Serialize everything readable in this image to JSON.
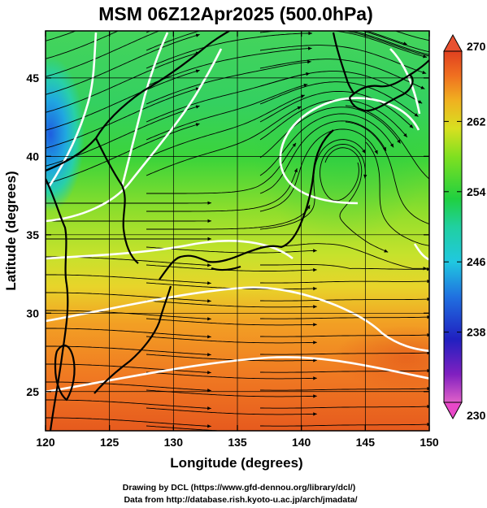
{
  "chart_data": {
    "type": "heatmap",
    "title": "MSM 06Z12Apr2025 (500.0hPa)",
    "xlabel": "Longitude (degrees)",
    "ylabel": "Latitude  (degrees)",
    "xlim": [
      120,
      150
    ],
    "ylim": [
      22.5,
      48
    ],
    "xticks": [
      "120",
      "125",
      "130",
      "135",
      "140",
      "145",
      "150"
    ],
    "yticks": [
      "25",
      "30",
      "35",
      "40",
      "45"
    ],
    "colorbar": {
      "range": [
        230,
        270
      ],
      "ticks": [
        "270",
        "262",
        "254",
        "246",
        "238",
        "230"
      ],
      "colors": [
        "#e060c8",
        "#8020c0",
        "#2020c0",
        "#2070e0",
        "#20c8e0",
        "#20d0a0",
        "#20d040",
        "#80e020",
        "#d8e020",
        "#f0b020",
        "#f07020",
        "#e04020"
      ]
    },
    "field": "temperature (K), 500 hPa",
    "overlays": [
      "wind streamlines",
      "white temperature contours",
      "coastlines"
    ],
    "grid": true
  },
  "credits": {
    "line1": "Drawing by DCL (https://www.gfd-dennou.org/library/dcl/)",
    "line2": "Data from http://database.rish.kyoto-u.ac.jp/arch/jmadata/"
  }
}
